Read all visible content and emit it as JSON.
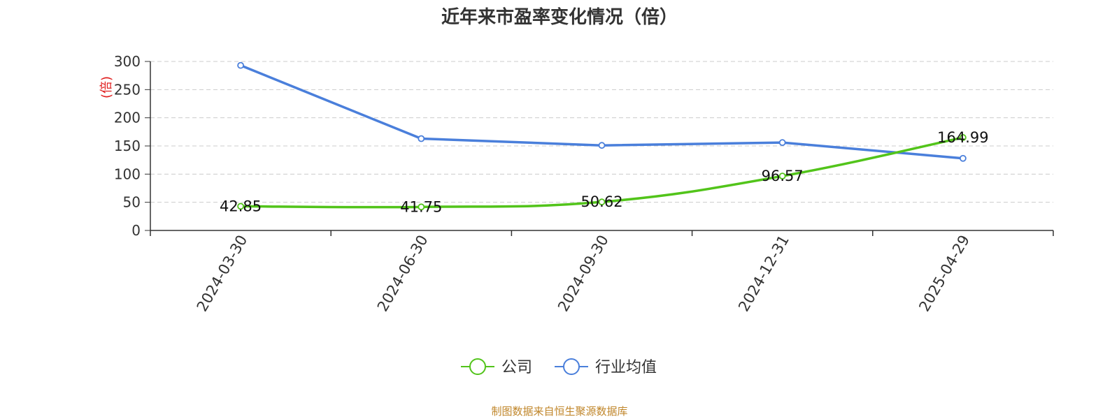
{
  "chart_data": {
    "type": "line",
    "title": "近年来市盈率变化情况（倍）",
    "ylabel": "(倍)",
    "xlabel": "",
    "categories": [
      "2024-03-30",
      "2024-06-30",
      "2024-09-30",
      "2024-12-31",
      "2025-04-29"
    ],
    "ylim": [
      0,
      300
    ],
    "yticks": [
      0,
      50,
      100,
      150,
      200,
      250,
      300
    ],
    "grid": "horizontal-dashed",
    "legend_position": "bottom-center",
    "series": [
      {
        "name": "公司",
        "color": "#52c41a",
        "values": [
          42.85,
          41.75,
          50.62,
          96.57,
          164.99
        ],
        "data_labels": [
          "42.85",
          "41.75",
          "50.62",
          "96.57",
          "164.99"
        ]
      },
      {
        "name": "行业均值",
        "color": "#4a7fdb",
        "values": [
          293,
          163,
          151,
          156,
          128
        ]
      }
    ]
  },
  "footer": {
    "source": "制图数据来自恒生聚源数据库"
  },
  "colors": {
    "ylabel": "#e02020",
    "grid": "#cccccc",
    "axis": "#333333",
    "footer": "#c0862a"
  }
}
